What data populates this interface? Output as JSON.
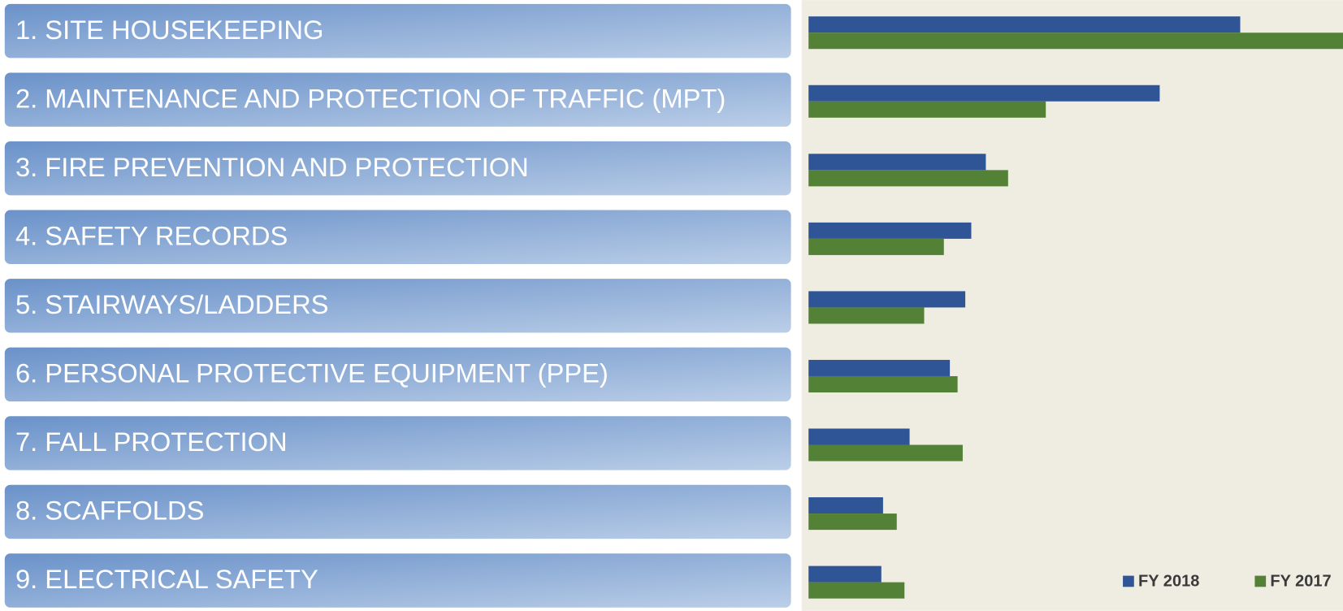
{
  "chart_data": {
    "type": "bar",
    "orientation": "horizontal",
    "categories": [
      "1. SITE HOUSEKEEPING",
      "2. MAINTENANCE AND PROTECTION OF TRAFFIC (MPT)",
      "3. FIRE PREVENTION AND PROTECTION",
      "4. SAFETY RECORDS",
      "5. STAIRWAYS/LADDERS",
      "6. PERSONAL PROTECTIVE EQUIPMENT (PPE)",
      "7. FALL PROTECTION",
      "8. SCAFFOLDS",
      "9. ELECTRICAL SAFETY"
    ],
    "series": [
      {
        "name": "FY 2018",
        "color": "#2f5597",
        "values": [
          504,
          410,
          207,
          190,
          183,
          165,
          118,
          87,
          85
        ]
      },
      {
        "name": "FY 2017",
        "color": "#538135",
        "values": [
          624,
          277,
          233,
          158,
          135,
          174,
          180,
          103,
          112
        ]
      }
    ],
    "legend": "bottom-right"
  }
}
